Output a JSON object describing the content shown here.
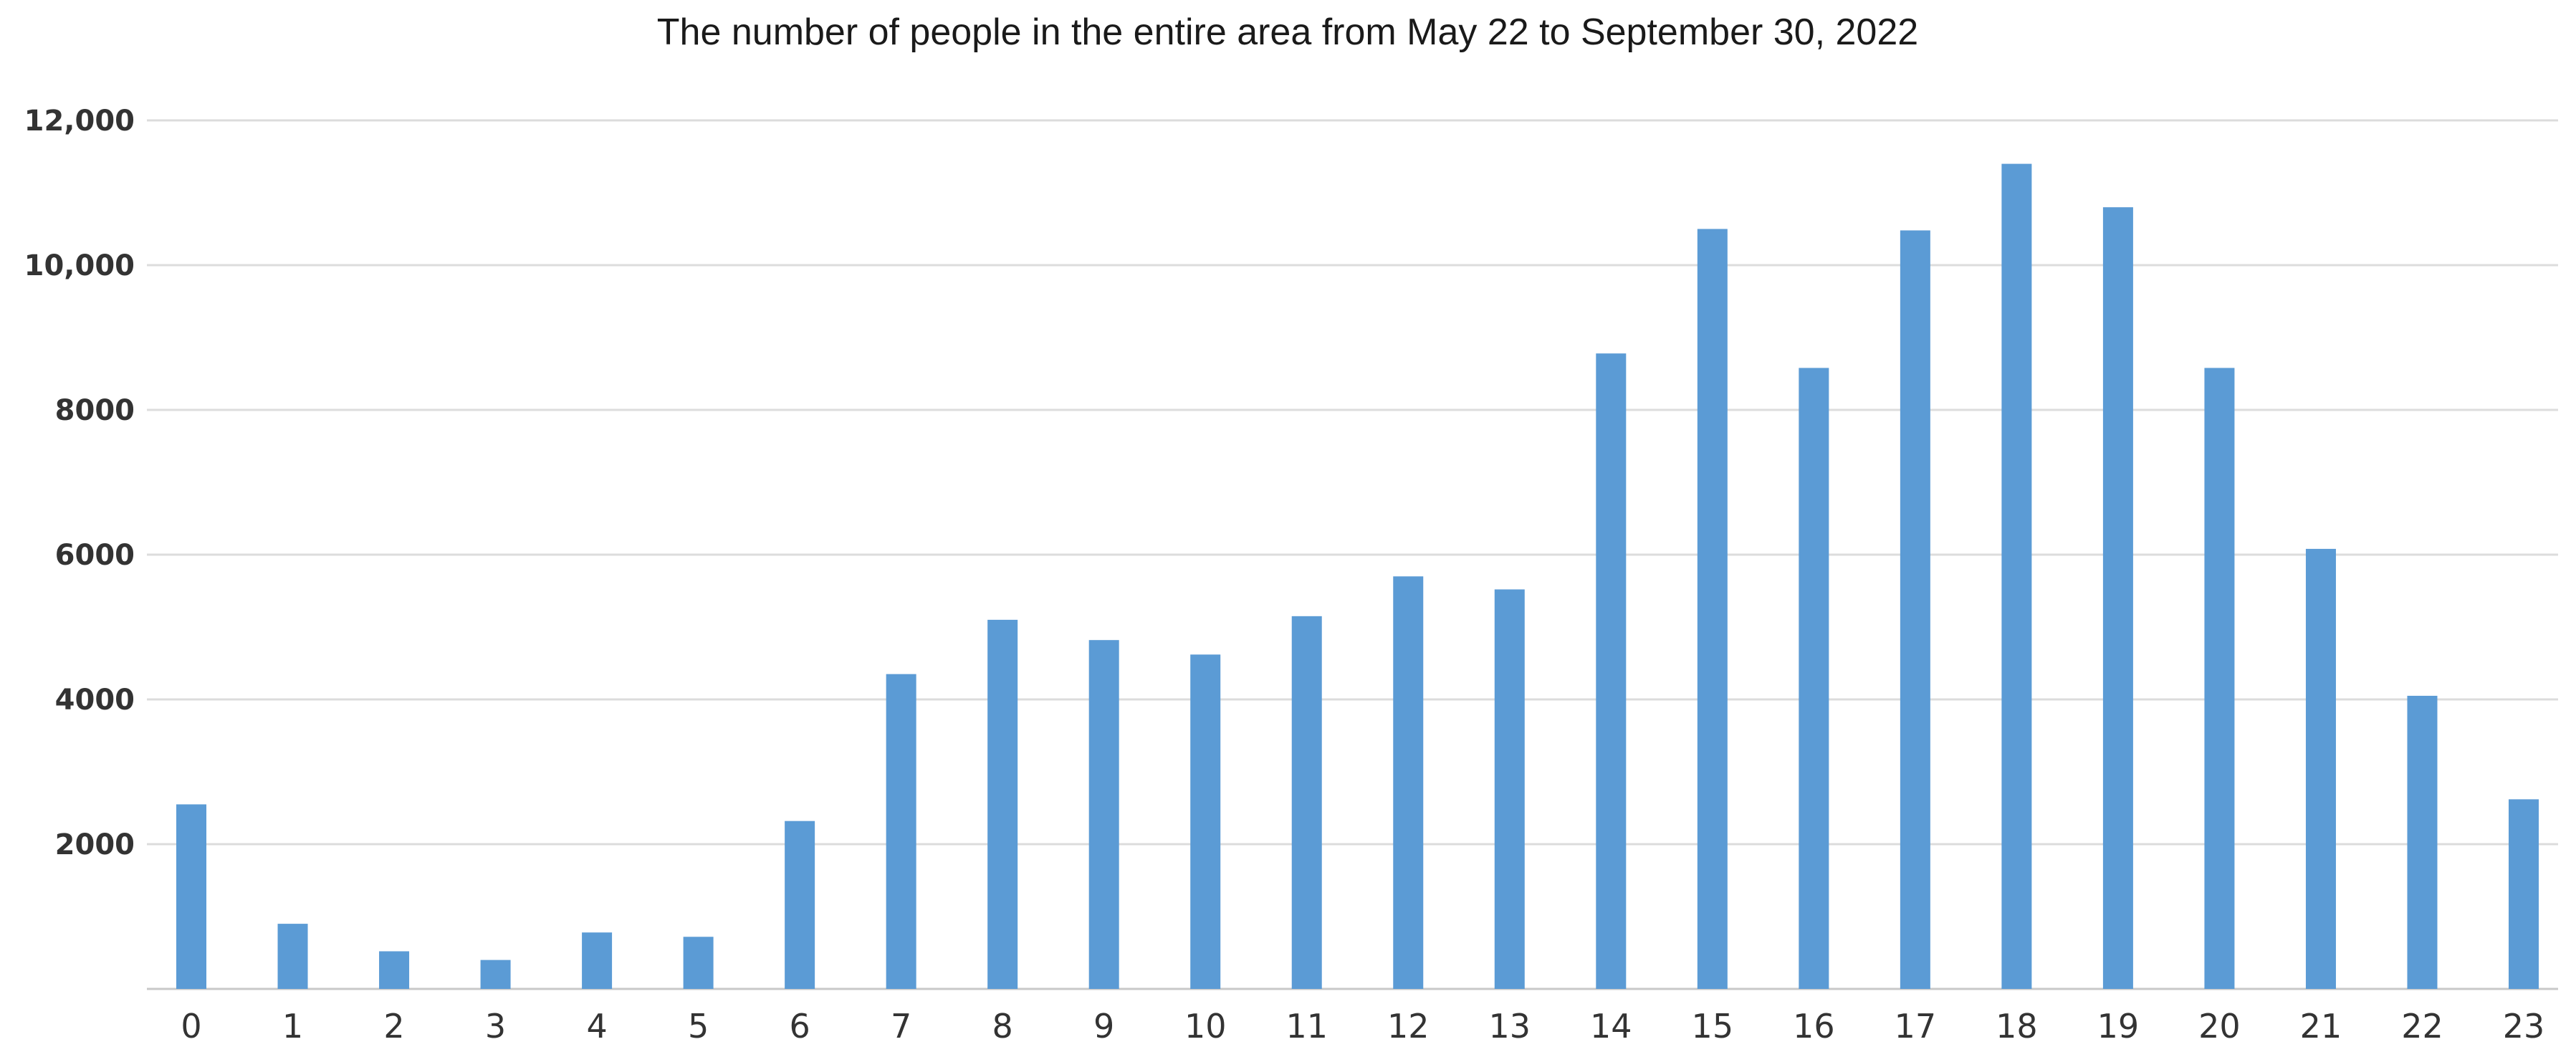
{
  "chart_data": {
    "type": "bar",
    "title": "The number of people in the entire area from May 22 to September 30, 2022",
    "xlabel": "",
    "ylabel": "",
    "categories": [
      "0",
      "1",
      "2",
      "3",
      "4",
      "5",
      "6",
      "7",
      "8",
      "9",
      "10",
      "11",
      "12",
      "13",
      "14",
      "15",
      "16",
      "17",
      "18",
      "19",
      "20",
      "21",
      "22",
      "23"
    ],
    "series": [
      {
        "values": [
          2550,
          900,
          520,
          400,
          780,
          720,
          2320,
          4350,
          5100,
          4820,
          4620,
          5150,
          5700,
          5520,
          8780,
          10500,
          8580,
          10480,
          11400,
          10800,
          8580,
          6080,
          4050,
          2620
        ]
      }
    ],
    "ylim": [
      0,
      12000
    ],
    "yticks": [
      {
        "value": 2000,
        "label": "2000"
      },
      {
        "value": 4000,
        "label": "4000"
      },
      {
        "value": 6000,
        "label": "6000"
      },
      {
        "value": 8000,
        "label": "8000"
      },
      {
        "value": 10000,
        "label": "10,000"
      },
      {
        "value": 12000,
        "label": "12,000"
      }
    ],
    "grid": true,
    "legend": "none",
    "bar_color": "#5b9bd5"
  }
}
